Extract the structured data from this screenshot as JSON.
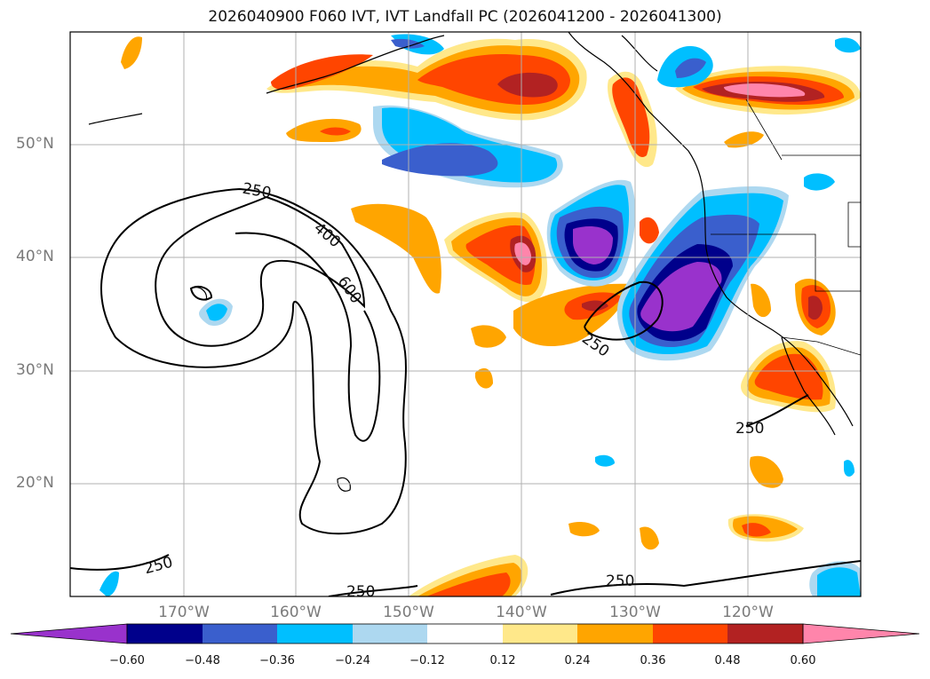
{
  "title": "2026040900 F060 IVT, IVT Landfall PC (2026041200 - 2026041300)",
  "lat_labels": [
    "50°N",
    "40°N",
    "30°N",
    "20°N"
  ],
  "lon_labels": [
    "170°W",
    "160°W",
    "150°W",
    "140°W",
    "130°W",
    "120°W"
  ],
  "contour_labels": [
    "250",
    "400",
    "600",
    "250",
    "250",
    "250",
    "250",
    "250"
  ],
  "colorbar": {
    "ticks": [
      "−0.60",
      "−0.48",
      "−0.36",
      "−0.24",
      "−0.12",
      "0.12",
      "0.24",
      "0.36",
      "0.48",
      "0.60"
    ],
    "colors": [
      "#9932cc",
      "#00008b",
      "#3a5fcd",
      "#00bfff",
      "#add8f0",
      "#ffffff",
      "#ffe88a",
      "#ffa500",
      "#ff4500",
      "#b22222",
      "#ff85ab"
    ]
  },
  "colors": {
    "neg_strong": "#9932cc",
    "neg_navy": "#00008b",
    "neg_blue": "#3a5fcd",
    "neg_sky": "#00bfff",
    "neg_light": "#add8f0",
    "pos_light": "#ffe88a",
    "pos_orange": "#ffa500",
    "pos_red": "#ff4500",
    "pos_darkred": "#b22222",
    "pos_pink": "#ff85ab"
  }
}
